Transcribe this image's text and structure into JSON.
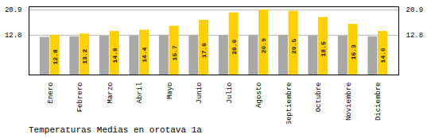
{
  "chart_data": {
    "type": "bar",
    "title": "Temperaturas Medias en orotava 1a",
    "categories": [
      "Enero",
      "Febrero",
      "Marzo",
      "Abril",
      "Mayo",
      "Junio",
      "Julio",
      "Agosto",
      "Septiembre",
      "Octubre",
      "Noviembre",
      "Diciembre"
    ],
    "series": [
      {
        "color": "#A8A8A8",
        "values": [
          12.1,
          12.3,
          12.5,
          12.6,
          12.7,
          12.7,
          12.7,
          12.7,
          12.7,
          12.6,
          12.5,
          12.3
        ]
      },
      {
        "color": "#FFD000",
        "values": [
          12.8,
          13.2,
          14.0,
          14.4,
          15.7,
          17.6,
          20.0,
          20.9,
          20.5,
          18.5,
          16.3,
          14.0
        ],
        "data_labels": true,
        "value_labels": [
          "12.8",
          "13.2",
          "14.0",
          "14.4",
          "15.7",
          "17.6",
          "20.0",
          "20.9",
          "20.5",
          "18.5",
          "16.3",
          "14.0"
        ]
      }
    ],
    "ylim": [
      0,
      21.945
    ],
    "yticks": [
      12.8,
      20.9
    ],
    "grid": true
  }
}
